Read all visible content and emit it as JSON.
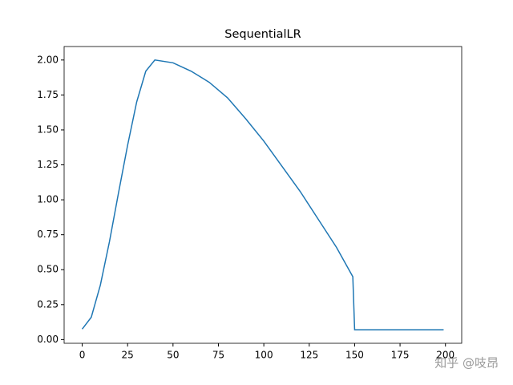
{
  "chart_data": {
    "type": "line",
    "title": "SequentialLR",
    "x": [
      0,
      5,
      10,
      15,
      20,
      25,
      30,
      35,
      40,
      50,
      60,
      70,
      80,
      90,
      100,
      110,
      120,
      130,
      140,
      149,
      150,
      199
    ],
    "series": [
      {
        "color": "#1f77b4",
        "values": [
          0.075,
          0.16,
          0.39,
          0.7,
          1.05,
          1.39,
          1.7,
          1.92,
          2.0,
          1.98,
          1.92,
          1.84,
          1.73,
          1.58,
          1.42,
          1.24,
          1.06,
          0.86,
          0.66,
          0.45,
          0.07,
          0.07
        ]
      }
    ],
    "xlim": [
      -9.95,
      208.95
    ],
    "ylim": [
      -0.0265,
      2.0965
    ],
    "xticks": [
      0,
      25,
      50,
      75,
      100,
      125,
      150,
      175,
      200
    ],
    "yticks": [
      {
        "value": 0,
        "label": "0.00"
      },
      {
        "value": 0.25,
        "label": "0.25"
      },
      {
        "value": 0.5,
        "label": "0.50"
      },
      {
        "value": 0.75,
        "label": "0.75"
      },
      {
        "value": 1,
        "label": "1.00"
      },
      {
        "value": 1.25,
        "label": "1.25"
      },
      {
        "value": 1.5,
        "label": "1.50"
      },
      {
        "value": 1.75,
        "label": "1.75"
      },
      {
        "value": 2,
        "label": "2.00"
      }
    ],
    "watermark": "知乎 @吱昂"
  }
}
